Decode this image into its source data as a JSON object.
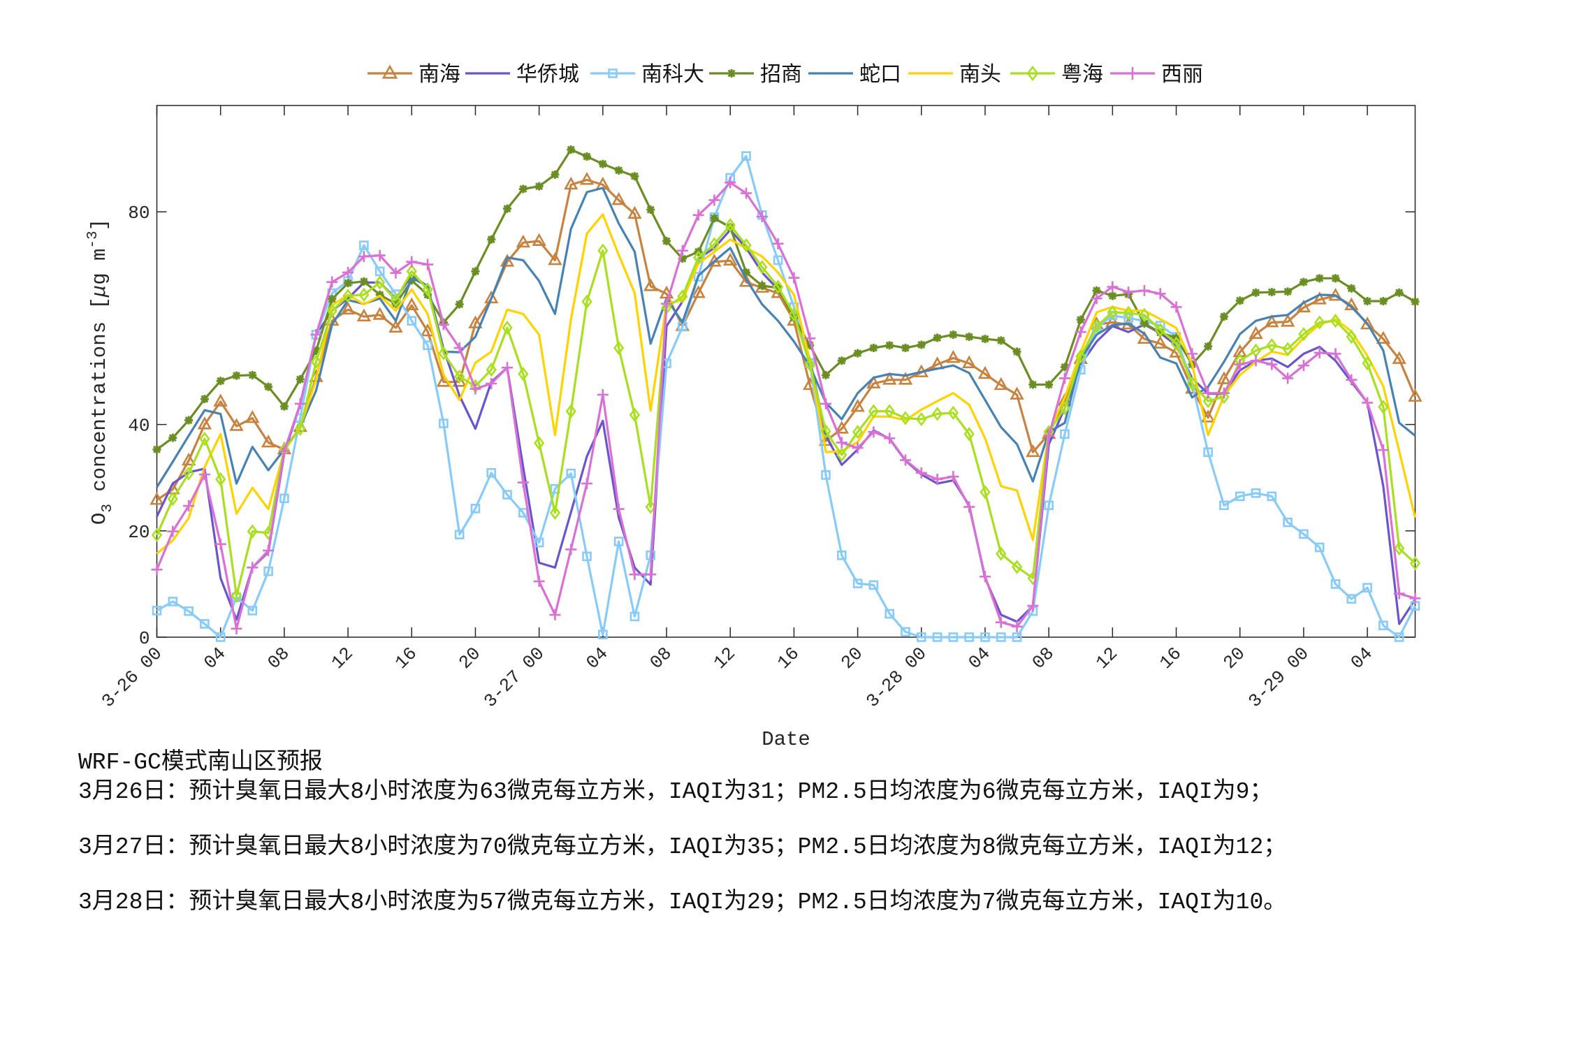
{
  "chart_data": {
    "type": "line",
    "title": "",
    "xlabel": "Date",
    "ylabel": {
      "base": "O",
      "sub": "3",
      "mid": " concentrations [",
      "mu": "μ",
      "unit": "g m",
      "sup": "-3",
      "end": "]"
    },
    "ylim": [
      0,
      100
    ],
    "yticks": [
      0,
      20,
      40,
      80
    ],
    "x_hours": "hourly, 3-26 00 to 3-29 07",
    "xtick_labels": [
      "3-26 00",
      "04",
      "08",
      "12",
      "16",
      "20",
      "3-27 00",
      "04",
      "08",
      "12",
      "16",
      "20",
      "3-28 00",
      "04",
      "08",
      "12",
      "16",
      "20",
      "3-29 00",
      "04"
    ],
    "grid": false,
    "legend_placement": "top-center",
    "series": [
      {
        "name": "南海",
        "color": "#C8823E",
        "marker": "triangle",
        "values": [
          25.8,
          27.8,
          33.2,
          40.0,
          44.3,
          39.7,
          41.2,
          36.6,
          35.3,
          39.5,
          48.9,
          59.5,
          61.6,
          60.3,
          60.6,
          58.2,
          62.4,
          57.5,
          48.0,
          48.0,
          59.0,
          63.7,
          70.6,
          74.2,
          74.5,
          70.9,
          85.1,
          86.0,
          85.1,
          82.2,
          79.6,
          66.0,
          64.6,
          58.5,
          64.7,
          70.6,
          70.8,
          66.8,
          65.7,
          64.7,
          59.5,
          47.4,
          36.9,
          39.2,
          43.3,
          47.7,
          48.4,
          48.4,
          49.8,
          51.3,
          52.5,
          51.5,
          49.5,
          47.4,
          45.6,
          34.8,
          38.2,
          44.4,
          52.3,
          58.8,
          59.2,
          58.8,
          56.1,
          55.2,
          53.5,
          46.7,
          41.3,
          48.5,
          53.6,
          57.0,
          59.2,
          59.3,
          62.0,
          63.5,
          64.2,
          62.4,
          58.8,
          56.1,
          52.3,
          45.2
        ]
      },
      {
        "name": "华侨城",
        "color": "#6A55CF",
        "marker": "none",
        "values": [
          22.7,
          28.9,
          31.0,
          31.7,
          11.1,
          3.3,
          13.1,
          16.0,
          34.6,
          43.8,
          56.9,
          61.4,
          63.7,
          66.7,
          66.7,
          63.7,
          68.0,
          66.0,
          54.2,
          45.4,
          39.2,
          48.0,
          50.7,
          32.0,
          14.0,
          13.1,
          23.5,
          34.0,
          40.7,
          22.5,
          13.1,
          9.9,
          58.5,
          63.1,
          71.2,
          73.2,
          76.6,
          73.2,
          68.6,
          65.4,
          60.8,
          52.3,
          37.9,
          32.4,
          35.3,
          38.9,
          37.3,
          33.2,
          30.6,
          28.9,
          29.5,
          24.8,
          11.1,
          4.2,
          2.9,
          5.9,
          36.3,
          43.1,
          51.3,
          55.6,
          58.5,
          57.4,
          58.8,
          57.2,
          54.9,
          48.7,
          45.8,
          45.8,
          50.2,
          52.0,
          52.4,
          50.8,
          53.3,
          54.6,
          52.0,
          48.0,
          44.1,
          28.4,
          2.5,
          7.1
        ]
      },
      {
        "name": "南科大",
        "color": "#87CBFA",
        "marker": "square",
        "values": [
          5.0,
          6.7,
          4.9,
          2.5,
          0,
          7.5,
          5.0,
          12.4,
          26.1,
          41.2,
          56.9,
          64.7,
          67.0,
          73.7,
          68.8,
          64.5,
          59.5,
          54.9,
          40.2,
          19.3,
          24.2,
          30.9,
          26.8,
          23.4,
          17.8,
          27.9,
          30.8,
          15.2,
          0.5,
          18.0,
          3.9,
          15.4,
          51.5,
          58.4,
          67.8,
          79.0,
          86.4,
          90.5,
          79.4,
          70.9,
          62.1,
          51.6,
          30.5,
          15.4,
          10.1,
          9.8,
          4.4,
          1.0,
          0,
          0,
          0,
          0,
          0,
          0,
          0,
          4.9,
          24.8,
          38.2,
          50.3,
          58.2,
          60.5,
          60.0,
          59.5,
          58.6,
          56.5,
          47.7,
          34.8,
          24.8,
          26.5,
          27.1,
          26.5,
          21.6,
          19.4,
          16.9,
          10.0,
          7.2,
          9.3,
          2.2,
          0,
          5.9
        ]
      },
      {
        "name": "招商",
        "color": "#6B8E23",
        "marker": "asterisk",
        "values": [
          35.3,
          37.5,
          40.8,
          44.8,
          48.2,
          49.2,
          49.3,
          47.1,
          43.4,
          48.5,
          53.9,
          63.6,
          66.6,
          66.9,
          64.4,
          62.7,
          67.1,
          64.4,
          59.2,
          62.6,
          68.8,
          74.8,
          80.6,
          84.3,
          84.8,
          87.0,
          91.7,
          90.4,
          89.0,
          87.8,
          86.7,
          80.4,
          74.5,
          71.2,
          72.5,
          78.8,
          77.1,
          68.6,
          66.1,
          65.7,
          60.1,
          54.9,
          49.3,
          52.0,
          53.4,
          54.4,
          54.9,
          54.4,
          55.0,
          56.3,
          56.9,
          56.5,
          56.1,
          55.8,
          53.7,
          47.5,
          47.5,
          50.8,
          59.7,
          65.2,
          64.2,
          64.5,
          59.0,
          57.3,
          56.3,
          51.3,
          54.7,
          60.3,
          63.3,
          64.8,
          64.9,
          65.0,
          66.8,
          67.5,
          67.5,
          65.6,
          63.2,
          63.2,
          64.8,
          63.1
        ]
      },
      {
        "name": "蛇口",
        "color": "#4682B4",
        "marker": "none",
        "values": [
          28.2,
          33.0,
          37.9,
          42.7,
          42.0,
          28.9,
          35.8,
          31.4,
          35.3,
          39.5,
          46.4,
          58.8,
          63.4,
          62.7,
          63.7,
          59.5,
          67.6,
          66.0,
          53.7,
          53.6,
          56.5,
          63.7,
          71.4,
          70.9,
          67.0,
          60.8,
          76.8,
          83.7,
          84.5,
          77.8,
          72.5,
          55.2,
          63.7,
          59.2,
          68.0,
          70.7,
          73.2,
          67.3,
          62.6,
          59.5,
          55.6,
          51.0,
          44.1,
          41.0,
          45.9,
          48.8,
          49.5,
          49.2,
          49.9,
          50.5,
          51.1,
          49.7,
          44.6,
          39.5,
          36.3,
          29.3,
          38.6,
          40.3,
          52.3,
          56.9,
          58.7,
          59.0,
          57.1,
          52.6,
          51.5,
          45.1,
          47.1,
          51.8,
          57.0,
          59.5,
          60.3,
          60.6,
          62.9,
          64.4,
          64.3,
          62.1,
          59.0,
          53.9,
          40.3,
          37.9
        ]
      },
      {
        "name": "南头",
        "color": "#FFD200",
        "marker": "none",
        "values": [
          15.7,
          18.2,
          22.4,
          32.0,
          38.2,
          23.2,
          28.1,
          24.1,
          35.1,
          39.5,
          48.4,
          62.4,
          64.4,
          62.6,
          64.2,
          61.4,
          65.4,
          60.8,
          49.3,
          44.6,
          51.6,
          53.7,
          61.6,
          60.8,
          56.9,
          38.0,
          59.8,
          75.9,
          79.5,
          71.9,
          64.7,
          42.6,
          62.7,
          63.4,
          70.3,
          72.5,
          74.8,
          73.2,
          71.6,
          68.6,
          64.4,
          52.0,
          34.8,
          35.0,
          36.7,
          41.5,
          41.5,
          40.8,
          42.8,
          44.4,
          45.9,
          43.7,
          37.4,
          28.4,
          27.6,
          18.3,
          38.6,
          45.1,
          53.6,
          61.1,
          62.1,
          61.4,
          61.4,
          59.8,
          58.2,
          51.3,
          38.0,
          45.4,
          49.3,
          51.8,
          53.7,
          53.1,
          56.3,
          58.8,
          59.8,
          57.5,
          52.9,
          47.2,
          35.0,
          22.5
        ]
      },
      {
        "name": "粤海",
        "color": "#A8E01E",
        "marker": "diamond",
        "values": [
          19.2,
          26.0,
          30.8,
          37.3,
          29.7,
          7.8,
          19.9,
          19.6,
          35.3,
          39.2,
          51.8,
          61.4,
          64.2,
          64.4,
          66.7,
          63.4,
          68.8,
          65.4,
          53.4,
          49.0,
          47.2,
          50.3,
          58.2,
          49.5,
          36.5,
          23.4,
          42.5,
          63.1,
          72.7,
          54.4,
          41.8,
          24.5,
          62.0,
          64.1,
          71.4,
          73.9,
          77.5,
          73.7,
          69.6,
          65.9,
          60.7,
          51.3,
          38.7,
          34.3,
          38.6,
          42.5,
          42.5,
          41.2,
          41.0,
          42.0,
          42.2,
          38.2,
          27.3,
          15.7,
          13.2,
          11.1,
          38.6,
          43.1,
          52.8,
          58.5,
          61.1,
          61.0,
          60.6,
          57.8,
          55.2,
          47.7,
          44.4,
          45.2,
          52.0,
          53.9,
          54.9,
          54.2,
          57.0,
          59.2,
          59.5,
          56.5,
          51.5,
          43.3,
          16.7,
          13.9
        ]
      },
      {
        "name": "西丽",
        "color": "#DA70D6",
        "marker": "plus",
        "values": [
          12.7,
          19.9,
          24.7,
          30.6,
          17.5,
          1.6,
          13.1,
          16.3,
          35.0,
          43.9,
          56.9,
          66.8,
          68.6,
          71.6,
          71.8,
          68.5,
          70.6,
          70.1,
          58.8,
          54.4,
          46.7,
          47.7,
          50.7,
          29.1,
          10.5,
          4.2,
          16.5,
          28.9,
          45.6,
          24.1,
          11.8,
          11.8,
          62.7,
          72.7,
          79.4,
          82.2,
          85.5,
          83.5,
          79.1,
          74.0,
          67.6,
          56.2,
          43.9,
          36.6,
          35.6,
          38.6,
          37.4,
          33.3,
          30.9,
          29.7,
          30.2,
          24.5,
          11.4,
          2.8,
          2.0,
          5.9,
          37.9,
          48.7,
          57.4,
          63.7,
          65.9,
          64.9,
          65.2,
          64.6,
          62.1,
          53.3,
          45.9,
          45.9,
          51.3,
          52.0,
          51.3,
          48.7,
          51.1,
          53.5,
          53.3,
          48.4,
          44.1,
          35.2,
          8.2,
          7.3
        ]
      }
    ]
  },
  "notes": {
    "title": "WRF-GC模式南山区预报",
    "lines": [
      "3月26日：预计臭氧日最大8小时浓度为63微克每立方米，IAQI为31；PM2.5日均浓度为6微克每立方米，IAQI为9；",
      "3月27日：预计臭氧日最大8小时浓度为70微克每立方米，IAQI为35；PM2.5日均浓度为8微克每立方米，IAQI为12；",
      "3月28日：预计臭氧日最大8小时浓度为57微克每立方米，IAQI为29；PM2.5日均浓度为7微克每立方米，IAQI为10。"
    ]
  }
}
